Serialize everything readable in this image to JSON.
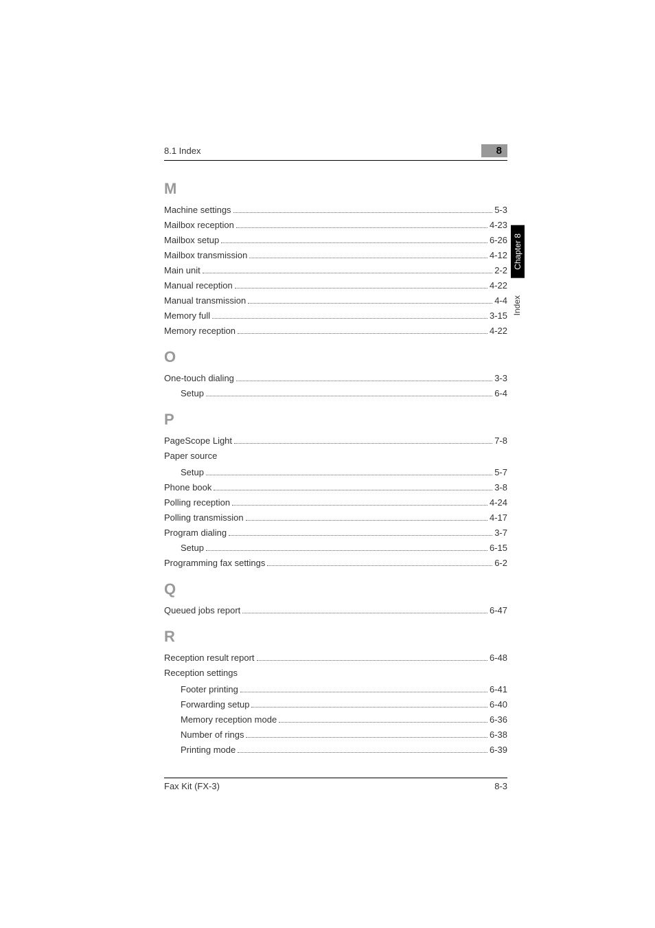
{
  "header": {
    "section_title": "8.1 Index",
    "chapter_num": "8"
  },
  "side": {
    "tab": "Chapter 8",
    "label": "Index"
  },
  "sections": {
    "M": {
      "letter": "M",
      "items": [
        {
          "label": "Machine settings",
          "page": "5-3"
        },
        {
          "label": "Mailbox reception",
          "page": "4-23"
        },
        {
          "label": "Mailbox setup",
          "page": "6-26"
        },
        {
          "label": "Mailbox transmission",
          "page": "4-12"
        },
        {
          "label": "Main unit",
          "page": "2-2"
        },
        {
          "label": "Manual reception",
          "page": "4-22"
        },
        {
          "label": "Manual transmission",
          "page": "4-4"
        },
        {
          "label": "Memory full",
          "page": "3-15"
        },
        {
          "label": "Memory reception",
          "page": "4-22"
        }
      ]
    },
    "O": {
      "letter": "O",
      "items": [
        {
          "label": "One-touch dialing",
          "page": "3-3"
        },
        {
          "label": "Setup",
          "page": "6-4",
          "sub": true
        }
      ]
    },
    "P": {
      "letter": "P",
      "items": [
        {
          "label": "PageScope Light",
          "page": "7-8"
        },
        {
          "label": "Paper source",
          "header": true
        },
        {
          "label": "Setup",
          "page": "5-7",
          "sub": true
        },
        {
          "label": "Phone book",
          "page": "3-8"
        },
        {
          "label": "Polling reception",
          "page": "4-24"
        },
        {
          "label": "Polling transmission",
          "page": "4-17"
        },
        {
          "label": "Program dialing",
          "page": "3-7"
        },
        {
          "label": "Setup",
          "page": "6-15",
          "sub": true
        },
        {
          "label": "Programming fax settings",
          "page": "6-2"
        }
      ]
    },
    "Q": {
      "letter": "Q",
      "items": [
        {
          "label": "Queued jobs report",
          "page": "6-47"
        }
      ]
    },
    "R": {
      "letter": "R",
      "items": [
        {
          "label": "Reception result report",
          "page": "6-48"
        },
        {
          "label": "Reception settings",
          "header": true
        },
        {
          "label": "Footer printing",
          "page": "6-41",
          "sub": true
        },
        {
          "label": "Forwarding setup",
          "page": "6-40",
          "sub": true
        },
        {
          "label": "Memory reception mode",
          "page": "6-36",
          "sub": true
        },
        {
          "label": "Number of rings",
          "page": "6-38",
          "sub": true
        },
        {
          "label": "Printing mode",
          "page": "6-39",
          "sub": true
        }
      ]
    }
  },
  "footer": {
    "model": "Fax Kit (FX-3)",
    "pagenum": "8-3"
  }
}
